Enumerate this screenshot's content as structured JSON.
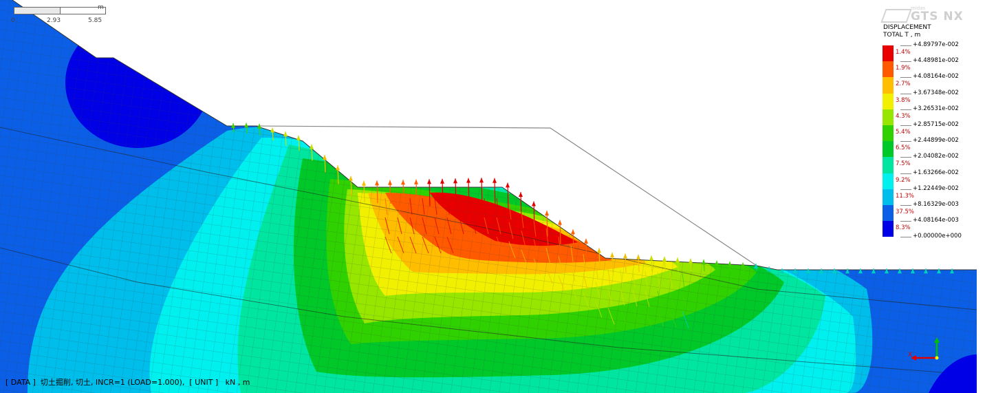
{
  "scale_bar": {
    "unit": "m",
    "ticks": [
      "0",
      "2.93",
      "5.85"
    ]
  },
  "logo": {
    "small_text": "midas",
    "brand_text": "GTS NX"
  },
  "legend": {
    "title_line1": "DISPLACEMENT",
    "title_line2": "TOTAL T , m",
    "values": [
      "+4.89797e-002",
      "+4.48981e-002",
      "+4.08164e-002",
      "+3.67348e-002",
      "+3.26531e-002",
      "+2.85715e-002",
      "+2.44899e-002",
      "+2.04082e-002",
      "+1.63266e-002",
      "+1.22449e-002",
      "+8.16329e-003",
      "+4.08164e-003",
      "+0.00000e+000"
    ],
    "bands": [
      {
        "percent": "1.4%",
        "color": "#e80000"
      },
      {
        "percent": "1.9%",
        "color": "#ff5a00"
      },
      {
        "percent": "2.7%",
        "color": "#ffbe00"
      },
      {
        "percent": "3.8%",
        "color": "#f0f000"
      },
      {
        "percent": "4.3%",
        "color": "#96e600"
      },
      {
        "percent": "5.4%",
        "color": "#2fd200"
      },
      {
        "percent": "6.5%",
        "color": "#00c829"
      },
      {
        "percent": "7.5%",
        "color": "#00e6a0"
      },
      {
        "percent": "9.2%",
        "color": "#00f0f0"
      },
      {
        "percent": "11.3%",
        "color": "#00beeb"
      },
      {
        "percent": "37.5%",
        "color": "#0a5fe6"
      },
      {
        "percent": "8.3%",
        "color": "#0000e6"
      }
    ]
  },
  "status_bar": {
    "text": "[ DATA ]  切土掘削, 切土, INCR=1 (LOAD=1.000),  [ UNIT ]   kN , m"
  },
  "axis_triad": {
    "y_label": "Y",
    "x_label": "X"
  }
}
